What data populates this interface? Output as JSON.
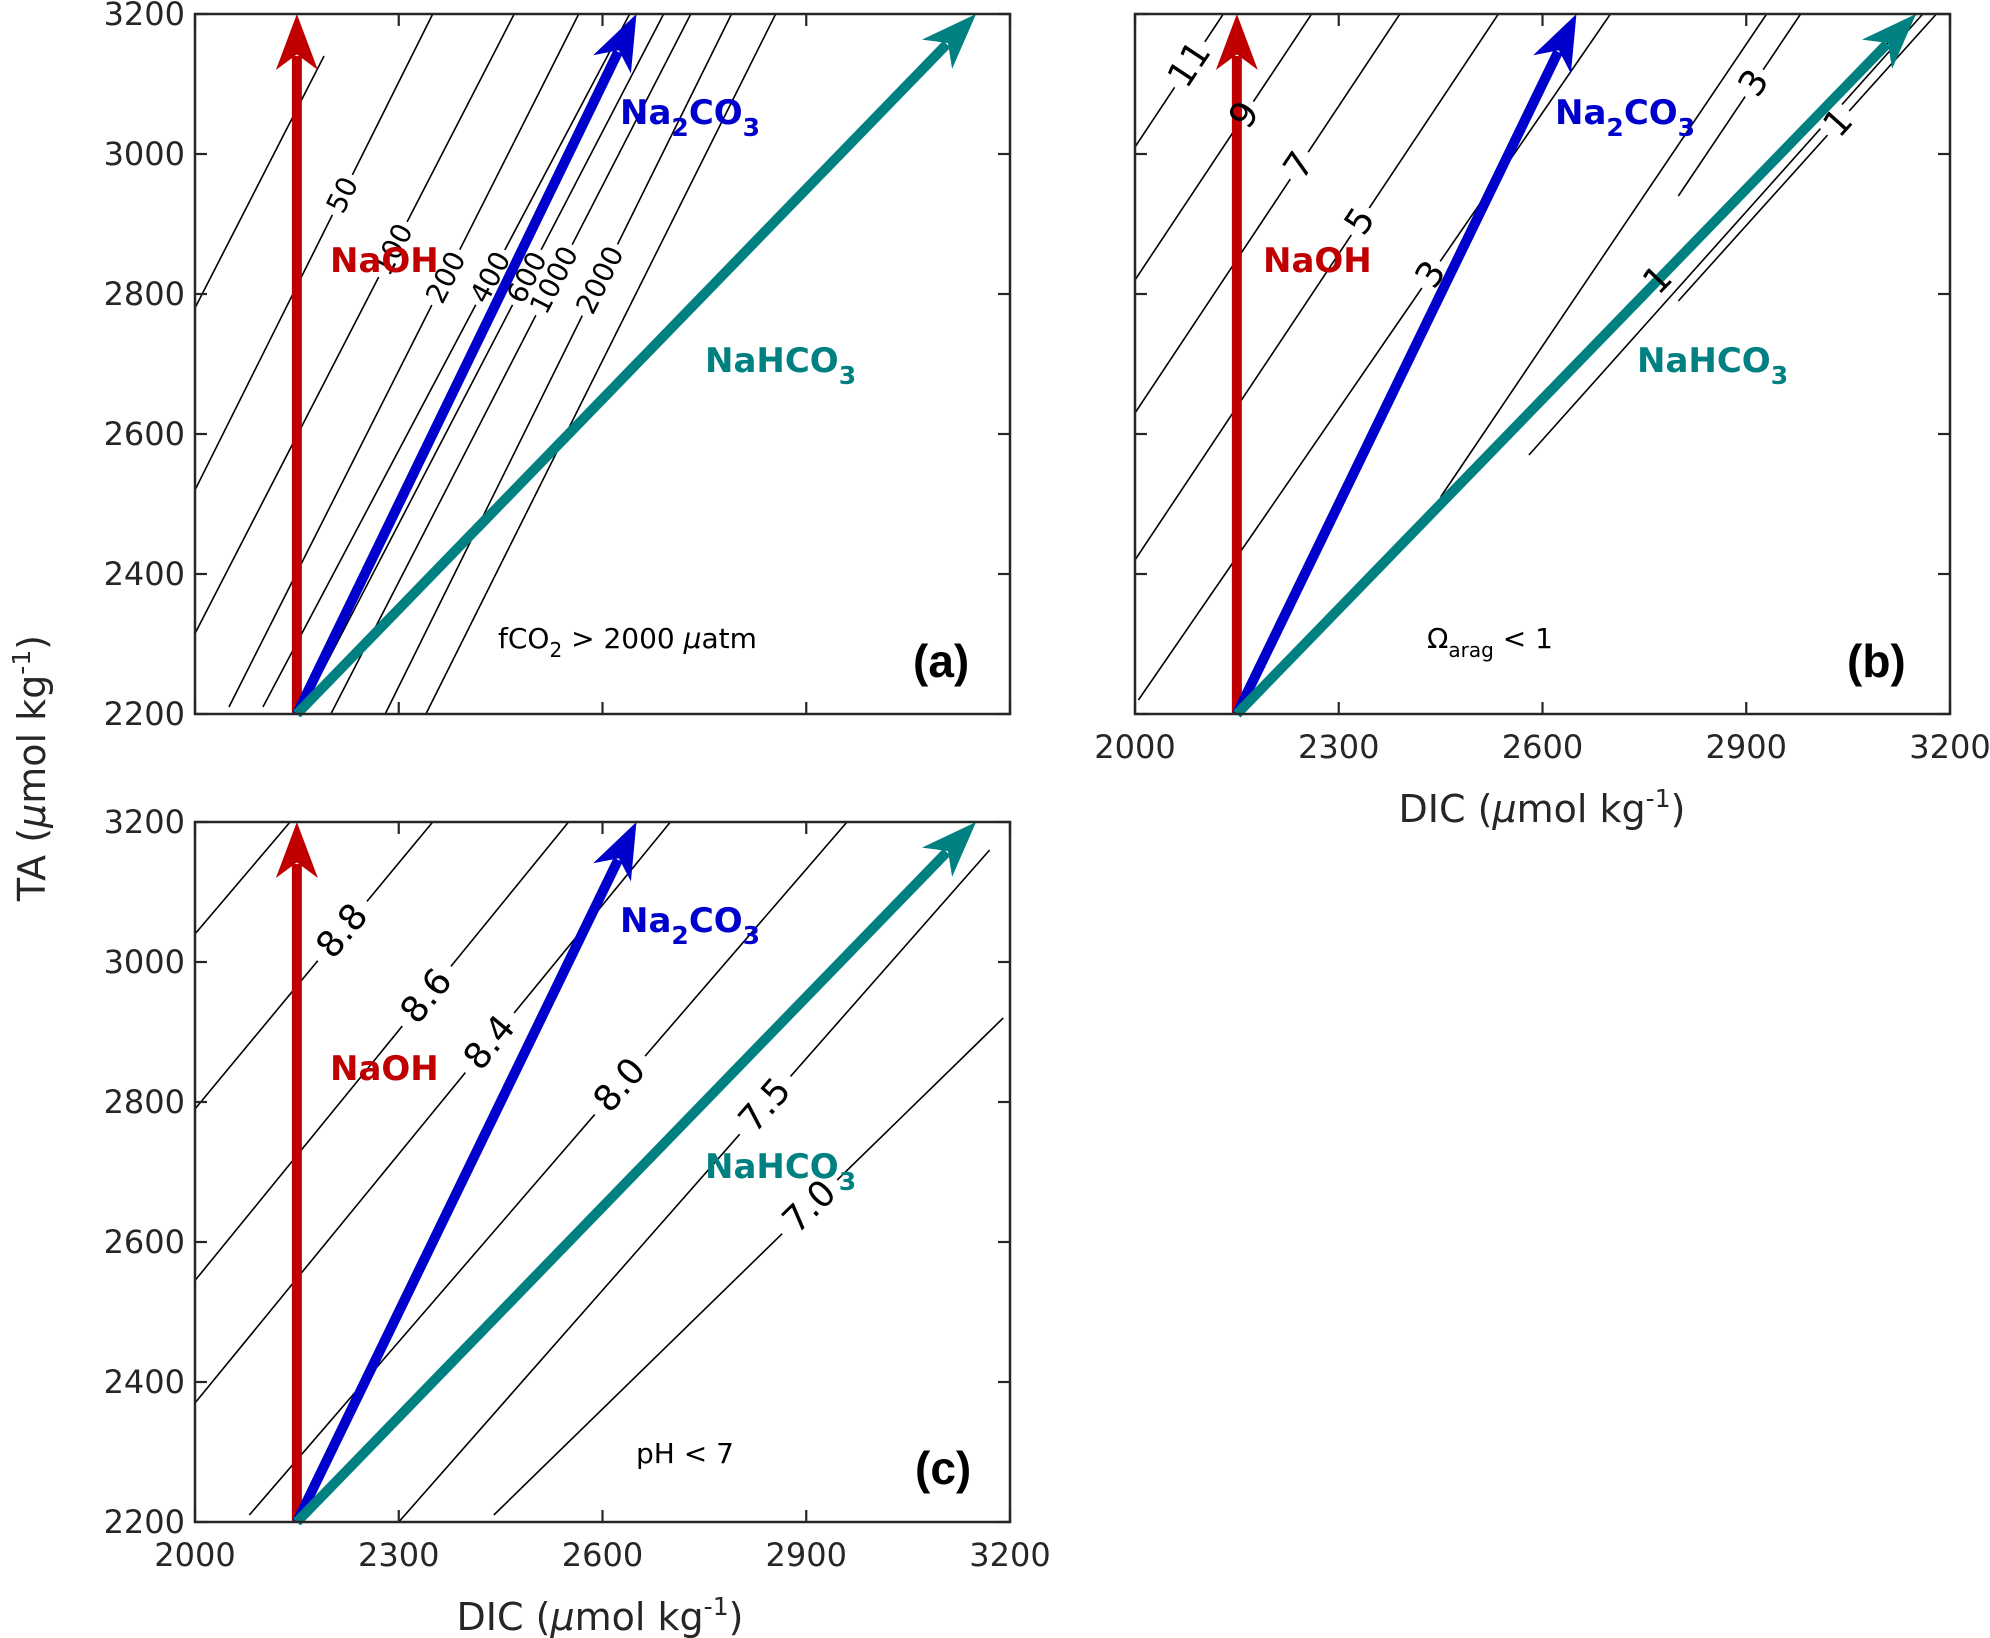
{
  "axes": {
    "x_label_main": "DIC (",
    "x_label_mu": "μ",
    "x_label_unit": "mol kg",
    "x_label_exp": "-1",
    "x_label_close": ")",
    "y_label_main": "TA (",
    "y_label_mu": "μ",
    "y_label_unit": "mol kg",
    "y_label_exp": "-1",
    "y_label_close": ")"
  },
  "arrows": {
    "naoh": {
      "label": "NaOH",
      "color": "#c00000"
    },
    "na2co3": {
      "label_a": "Na",
      "label_sub1": "2",
      "label_b": "CO",
      "label_sub2": "3",
      "color": "#0000cc"
    },
    "nahco3": {
      "label_a": "NaHCO",
      "label_sub": "3",
      "color": "#008080"
    }
  },
  "panels": {
    "a": {
      "letter": "(a)",
      "note_pre": "fCO",
      "note_sub": "2",
      "note_post": " > 2000 ",
      "note_mu": "μ",
      "note_unit": "atm"
    },
    "b": {
      "letter": "(b)",
      "note_pre": "Ω",
      "note_sub": "arag",
      "note_post": " < 1"
    },
    "c": {
      "letter": "(c)",
      "note_pre": "pH < 7"
    }
  },
  "chart_data": [
    {
      "type": "line",
      "panel": "a",
      "xlim": [
        2000,
        3200
      ],
      "ylim": [
        2200,
        3200
      ],
      "xticks": [
        2000,
        2300,
        2600,
        2900,
        3200
      ],
      "yticks": [
        2200,
        2400,
        2600,
        2800,
        3000,
        3200
      ],
      "xtick_labels_shown": false,
      "ytick_labels_shown": true,
      "arrows": [
        {
          "name": "NaOH",
          "from": [
            2150,
            2200
          ],
          "to": [
            2150,
            3200
          ]
        },
        {
          "name": "Na2CO3",
          "from": [
            2150,
            2200
          ],
          "to": [
            2650,
            3200
          ]
        },
        {
          "name": "NaHCO3",
          "from": [
            2150,
            2200
          ],
          "to": [
            3150,
            3200
          ]
        }
      ],
      "contour_variable": "fCO2",
      "contour_labels": [
        "50",
        "100",
        "200",
        "400",
        "600",
        "1000",
        "2000"
      ],
      "contours": [
        {
          "label": "",
          "from": [
            2000,
            2780
          ],
          "to": [
            2190,
            3140
          ]
        },
        {
          "label": "50",
          "from": [
            2000,
            2520
          ],
          "to": [
            2350,
            3200
          ]
        },
        {
          "label": "100",
          "from": [
            2000,
            2315
          ],
          "to": [
            2470,
            3200
          ]
        },
        {
          "label": "200",
          "from": [
            2050,
            2210
          ],
          "to": [
            2565,
            3200
          ]
        },
        {
          "label": "400",
          "from": [
            2100,
            2210
          ],
          "to": [
            2640,
            3200
          ]
        },
        {
          "label": "600",
          "from": [
            2160,
            2210
          ],
          "to": [
            2690,
            3200
          ]
        },
        {
          "label": "1000",
          "from": [
            2200,
            2200
          ],
          "to": [
            2730,
            3200
          ]
        },
        {
          "label": "2000",
          "from": [
            2280,
            2200
          ],
          "to": [
            2790,
            3200
          ]
        },
        {
          "label": "",
          "from": [
            2340,
            2200
          ],
          "to": [
            2855,
            3200
          ]
        }
      ]
    },
    {
      "type": "line",
      "panel": "b",
      "xlim": [
        2000,
        3200
      ],
      "ylim": [
        2200,
        3200
      ],
      "xticks": [
        2000,
        2300,
        2600,
        2900,
        3200
      ],
      "yticks": [
        2200,
        2400,
        2600,
        2800,
        3000,
        3200
      ],
      "xtick_labels_shown": true,
      "ytick_labels_shown": false,
      "arrows": [
        {
          "name": "NaOH",
          "from": [
            2150,
            2200
          ],
          "to": [
            2150,
            3200
          ]
        },
        {
          "name": "Na2CO3",
          "from": [
            2150,
            2200
          ],
          "to": [
            2650,
            3200
          ]
        },
        {
          "name": "NaHCO3",
          "from": [
            2150,
            2200
          ],
          "to": [
            3150,
            3200
          ]
        }
      ],
      "contour_variable": "Omega_arag",
      "contour_labels": [
        "11",
        "9",
        "7",
        "5",
        "3",
        "1"
      ],
      "contours": [
        {
          "label": "11",
          "from": [
            2000,
            3010
          ],
          "to": [
            2130,
            3200
          ]
        },
        {
          "label": "9",
          "from": [
            2000,
            2820
          ],
          "to": [
            2260,
            3200
          ]
        },
        {
          "label": "7",
          "from": [
            2000,
            2630
          ],
          "to": [
            2390,
            3200
          ]
        },
        {
          "label": "5",
          "from": [
            2000,
            2420
          ],
          "to": [
            2535,
            3200
          ]
        },
        {
          "label": "3",
          "from": [
            2005,
            2220
          ],
          "to": [
            2700,
            3200
          ]
        },
        {
          "label": "1",
          "from": [
            2150,
            2200
          ],
          "to": [
            3150,
            3200
          ]
        },
        {
          "label": "",
          "from": [
            2450,
            2510
          ],
          "to": [
            2930,
            3200
          ]
        },
        {
          "label": "",
          "from": [
            2580,
            2570
          ],
          "to": [
            3160,
            3200
          ]
        },
        {
          "label": "3",
          "from": [
            2800,
            2940
          ],
          "to": [
            2980,
            3200
          ]
        },
        {
          "label": "1",
          "from": [
            2800,
            2790
          ],
          "to": [
            3180,
            3200
          ]
        }
      ]
    },
    {
      "type": "line",
      "panel": "c",
      "xlim": [
        2000,
        3200
      ],
      "ylim": [
        2200,
        3200
      ],
      "xticks": [
        2000,
        2300,
        2600,
        2900,
        3200
      ],
      "yticks": [
        2200,
        2400,
        2600,
        2800,
        3000,
        3200
      ],
      "xtick_labels_shown": true,
      "ytick_labels_shown": true,
      "arrows": [
        {
          "name": "NaOH",
          "from": [
            2150,
            2200
          ],
          "to": [
            2150,
            3200
          ]
        },
        {
          "name": "Na2CO3",
          "from": [
            2150,
            2200
          ],
          "to": [
            2650,
            3200
          ]
        },
        {
          "name": "NaHCO3",
          "from": [
            2150,
            2200
          ],
          "to": [
            3150,
            3200
          ]
        }
      ],
      "contour_variable": "pH",
      "contour_labels": [
        "8.8",
        "8.6",
        "8.4",
        "8.0",
        "7.5",
        "7.0"
      ],
      "contours": [
        {
          "label": "",
          "from": [
            2000,
            3040
          ],
          "to": [
            2140,
            3200
          ]
        },
        {
          "label": "8.8",
          "from": [
            2000,
            2790
          ],
          "to": [
            2350,
            3200
          ]
        },
        {
          "label": "8.6",
          "from": [
            2000,
            2545
          ],
          "to": [
            2550,
            3200
          ]
        },
        {
          "label": "8.4",
          "from": [
            2000,
            2370
          ],
          "to": [
            2700,
            3200
          ]
        },
        {
          "label": "8.0",
          "from": [
            2080,
            2210
          ],
          "to": [
            2960,
            3200
          ]
        },
        {
          "label": "7.5",
          "from": [
            2300,
            2200
          ],
          "to": [
            3170,
            3160
          ]
        },
        {
          "label": "7.0",
          "from": [
            2440,
            2210
          ],
          "to": [
            3190,
            2920
          ]
        }
      ]
    }
  ]
}
